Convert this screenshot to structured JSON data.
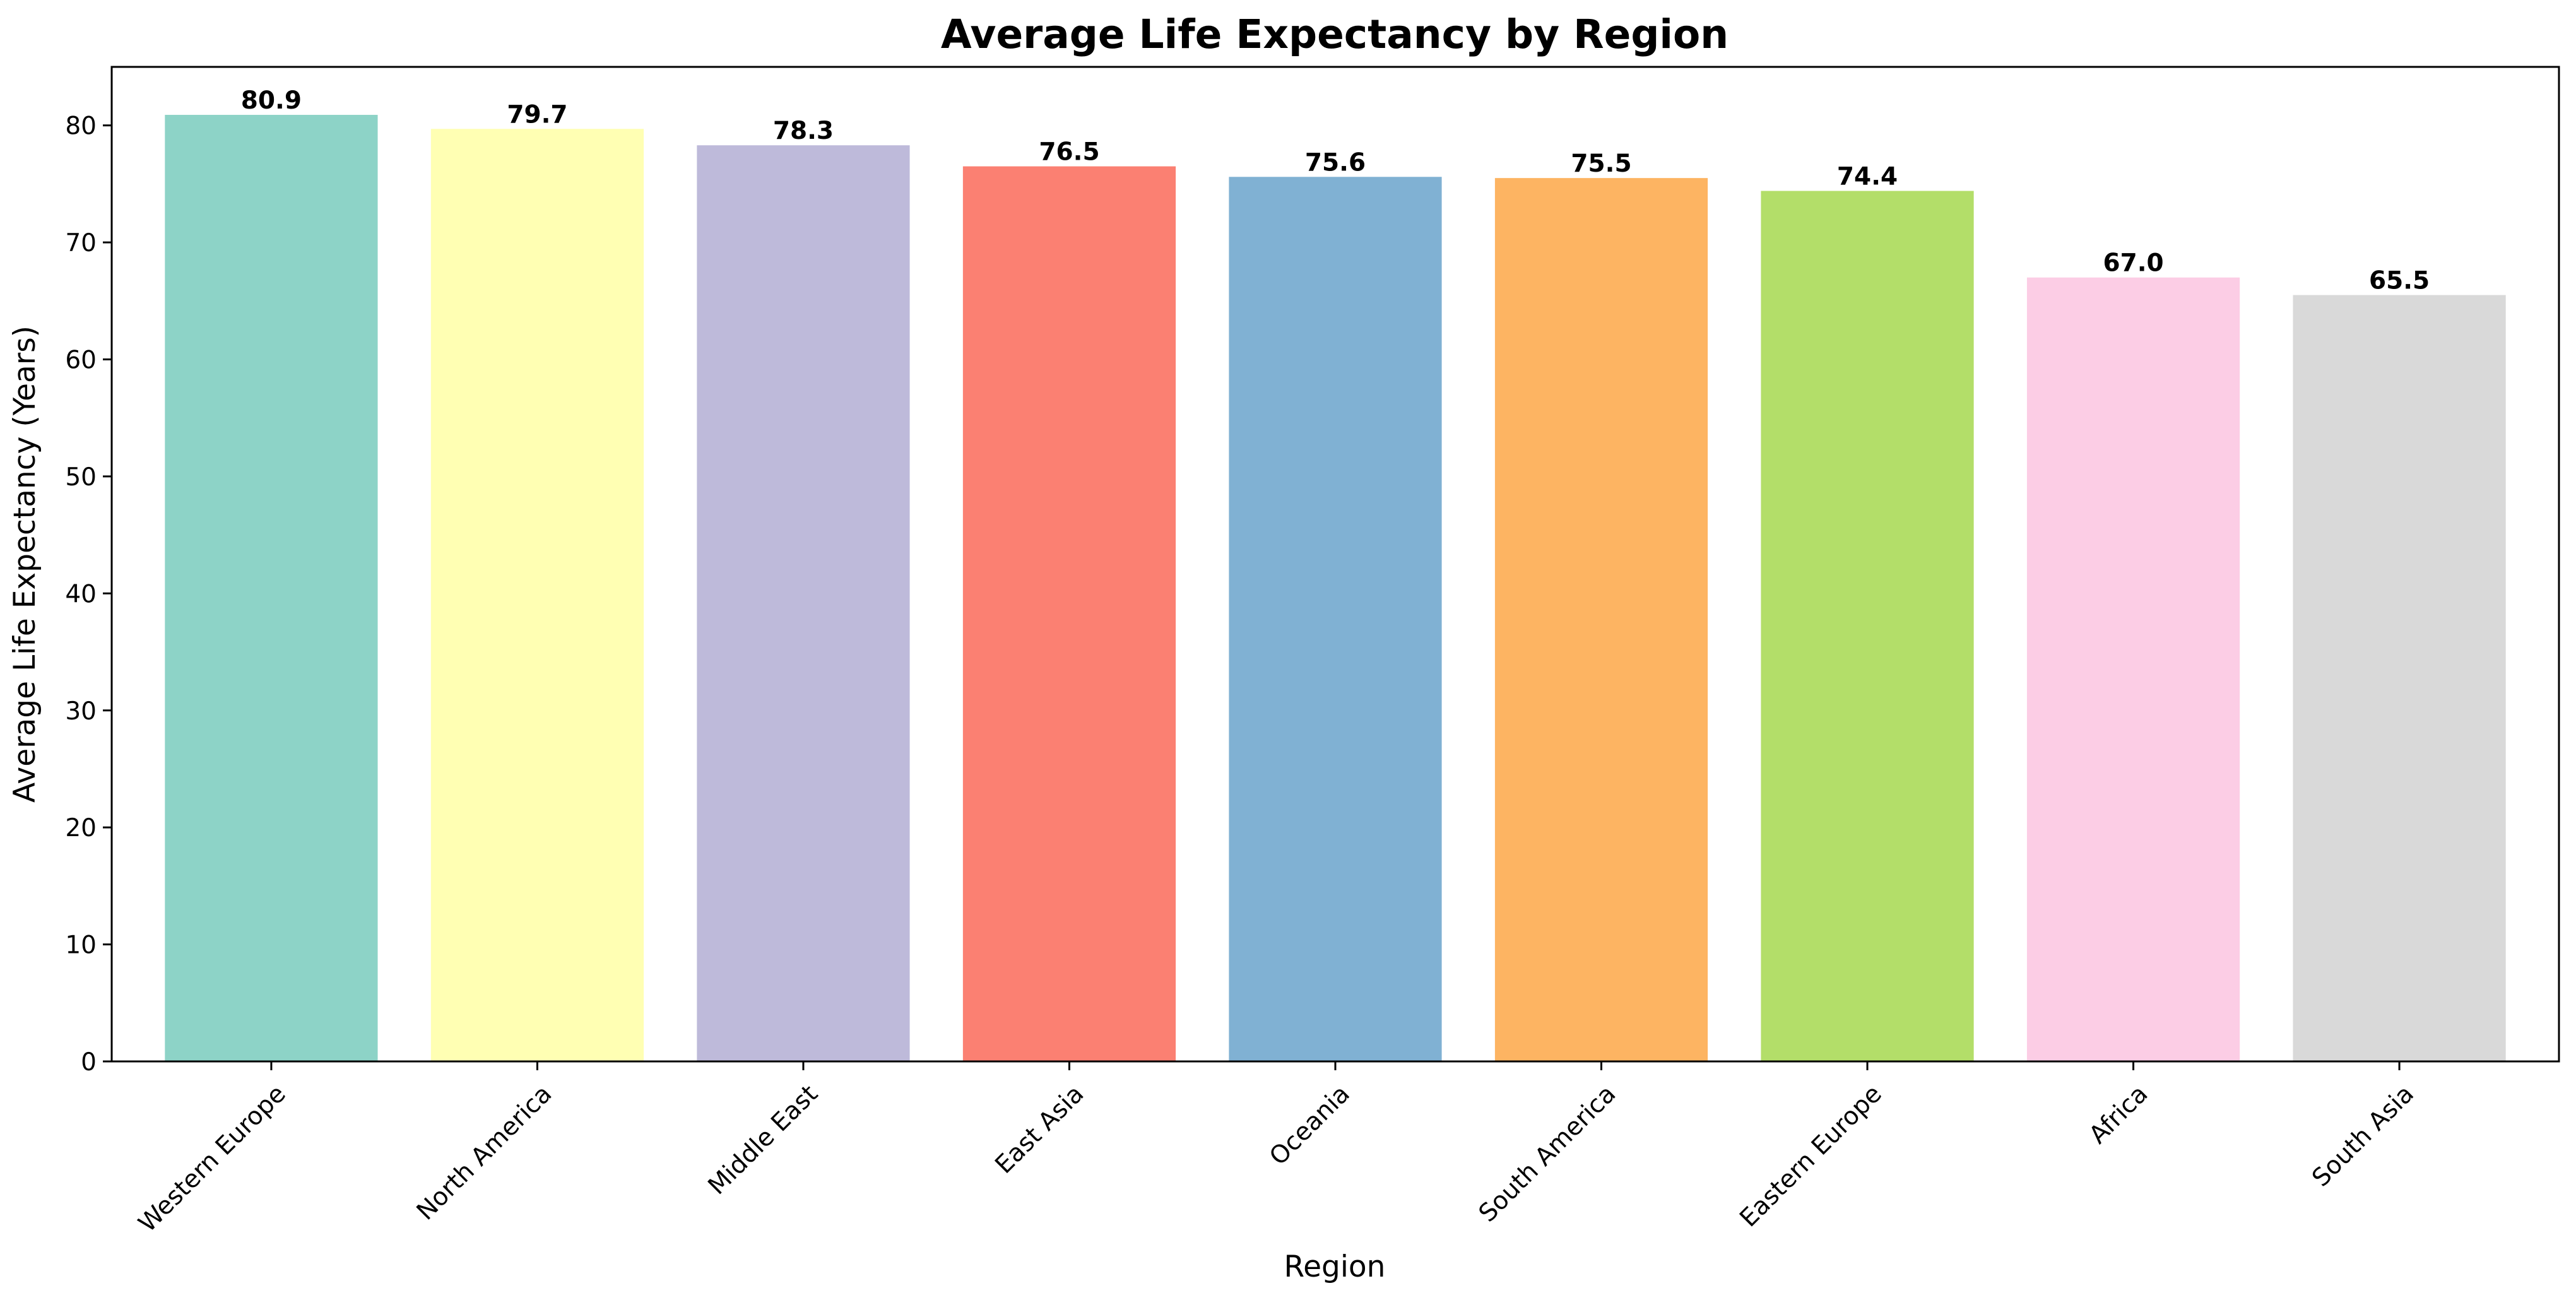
{
  "chart_data": {
    "type": "bar",
    "title": "Average Life Expectancy by Region",
    "xlabel": "Region",
    "ylabel": "Average Life Expectancy (Years)",
    "categories": [
      "Western Europe",
      "North America",
      "Middle East",
      "East Asia",
      "Oceania",
      "South America",
      "Eastern Europe",
      "Africa",
      "South Asia"
    ],
    "values": [
      80.9,
      79.7,
      78.3,
      76.5,
      75.6,
      75.5,
      74.4,
      67.0,
      65.5
    ],
    "value_labels": [
      "80.9",
      "79.7",
      "78.3",
      "76.5",
      "75.6",
      "75.5",
      "74.4",
      "67.0",
      "65.5"
    ],
    "colors": [
      "#8dd3c7",
      "#ffffb3",
      "#bebada",
      "#fb8072",
      "#80b1d3",
      "#fdb462",
      "#b3de69",
      "#fccde5",
      "#d9d9d9"
    ],
    "ylim": [
      0,
      85
    ],
    "yticks": [
      0,
      10,
      20,
      30,
      40,
      50,
      60,
      70,
      80
    ],
    "grid": false,
    "legend": "none"
  }
}
